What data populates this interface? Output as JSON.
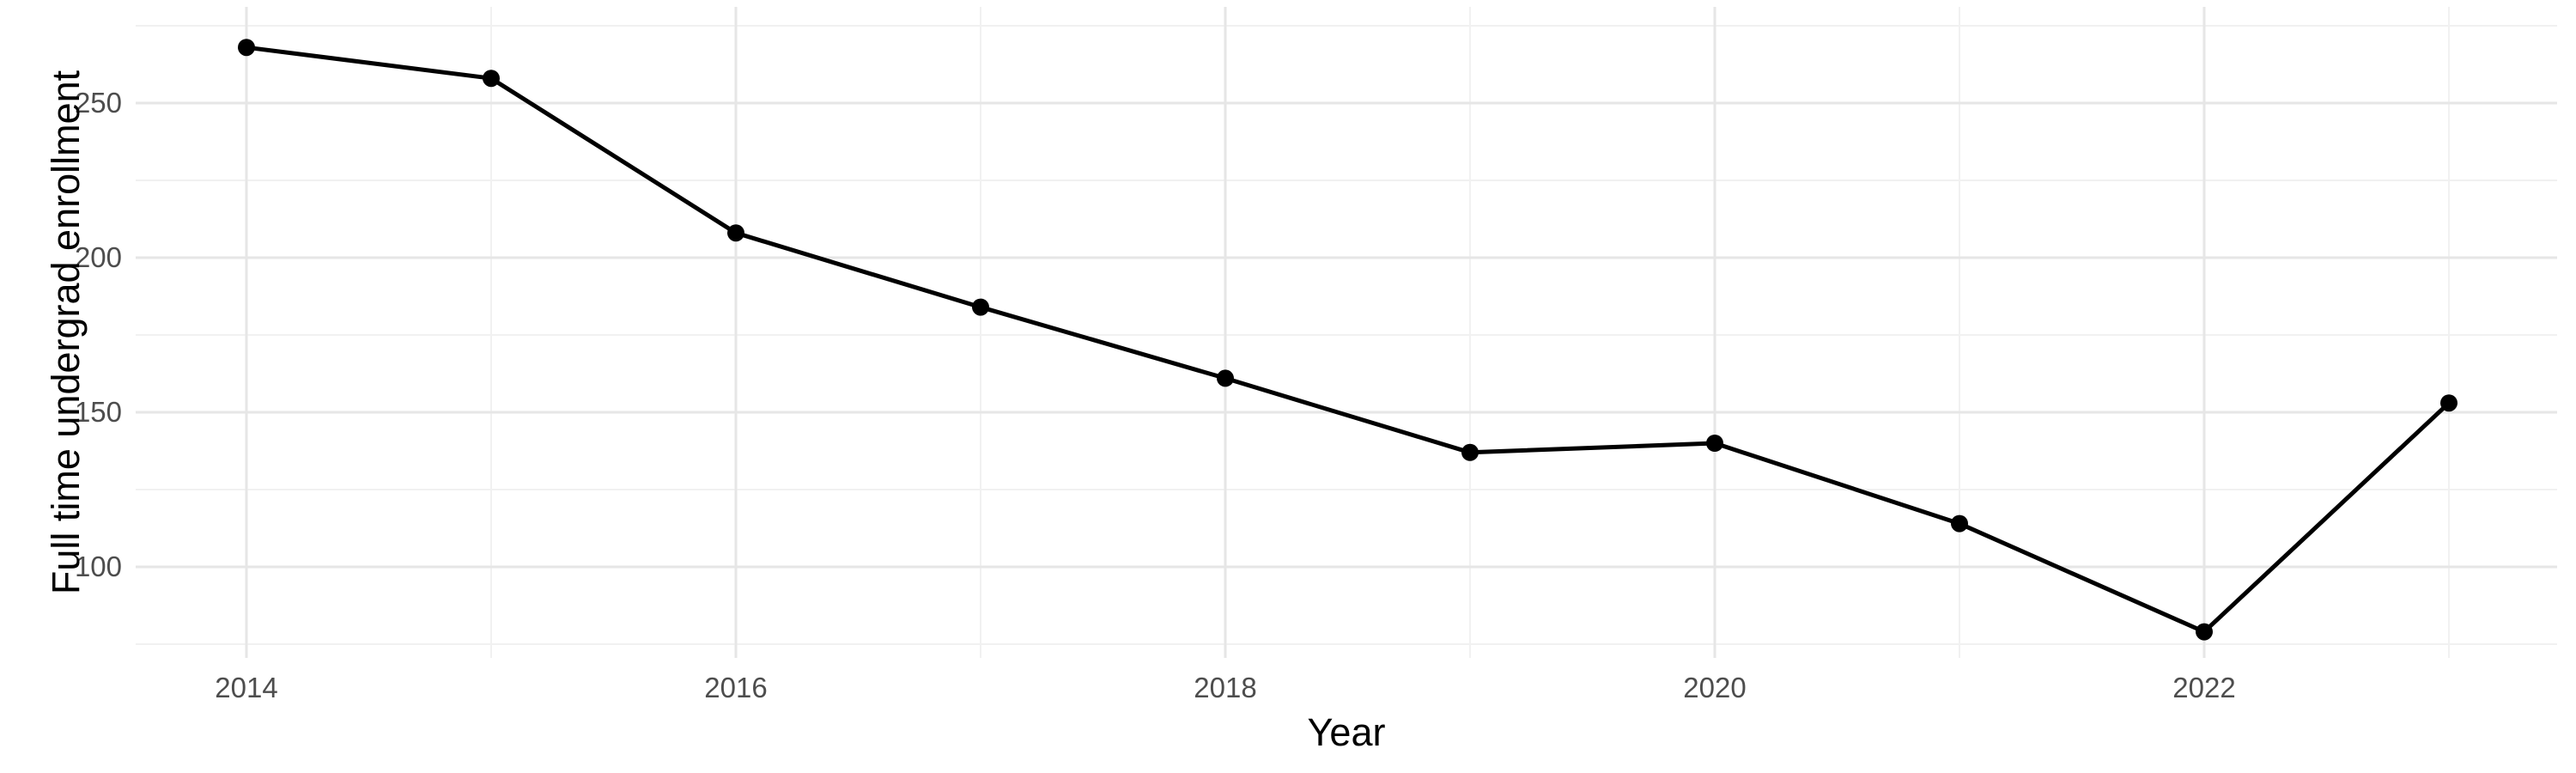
{
  "chart_data": {
    "type": "line",
    "title": "",
    "xlabel": "Year",
    "ylabel": "Full time undergrad enrollment",
    "series": [
      {
        "name": "Full time undergrad enrollment",
        "x": [
          2014,
          2015,
          2016,
          2017,
          2018,
          2019,
          2020,
          2021,
          2022,
          2023
        ],
        "values": [
          268,
          258,
          208,
          184,
          161,
          137,
          140,
          114,
          79,
          153
        ]
      }
    ],
    "x_axis": {
      "tick_values": [
        2014,
        2016,
        2018,
        2020,
        2022
      ],
      "tick_labels": [
        "2014",
        "2016",
        "2018",
        "2020",
        "2022"
      ],
      "minor_tick_values": [
        2015,
        2017,
        2019,
        2021,
        2023
      ],
      "range": [
        2013.55,
        2023.45
      ]
    },
    "y_axis": {
      "tick_values": [
        100,
        150,
        200,
        250
      ],
      "tick_labels": [
        "100",
        "150",
        "200",
        "250"
      ],
      "minor_tick_values": [
        75,
        125,
        175,
        225,
        275
      ],
      "range": [
        70,
        281
      ]
    },
    "grid": true,
    "legend": false,
    "marker": "filled-circle",
    "colors": {
      "line": "#000000",
      "point": "#000000",
      "grid_major": "#E6E6E6",
      "grid_minor": "#F1F1F1",
      "tick_text": "#4D4D4D",
      "axis_title_text": "#000000",
      "background": "#FFFFFF"
    }
  }
}
